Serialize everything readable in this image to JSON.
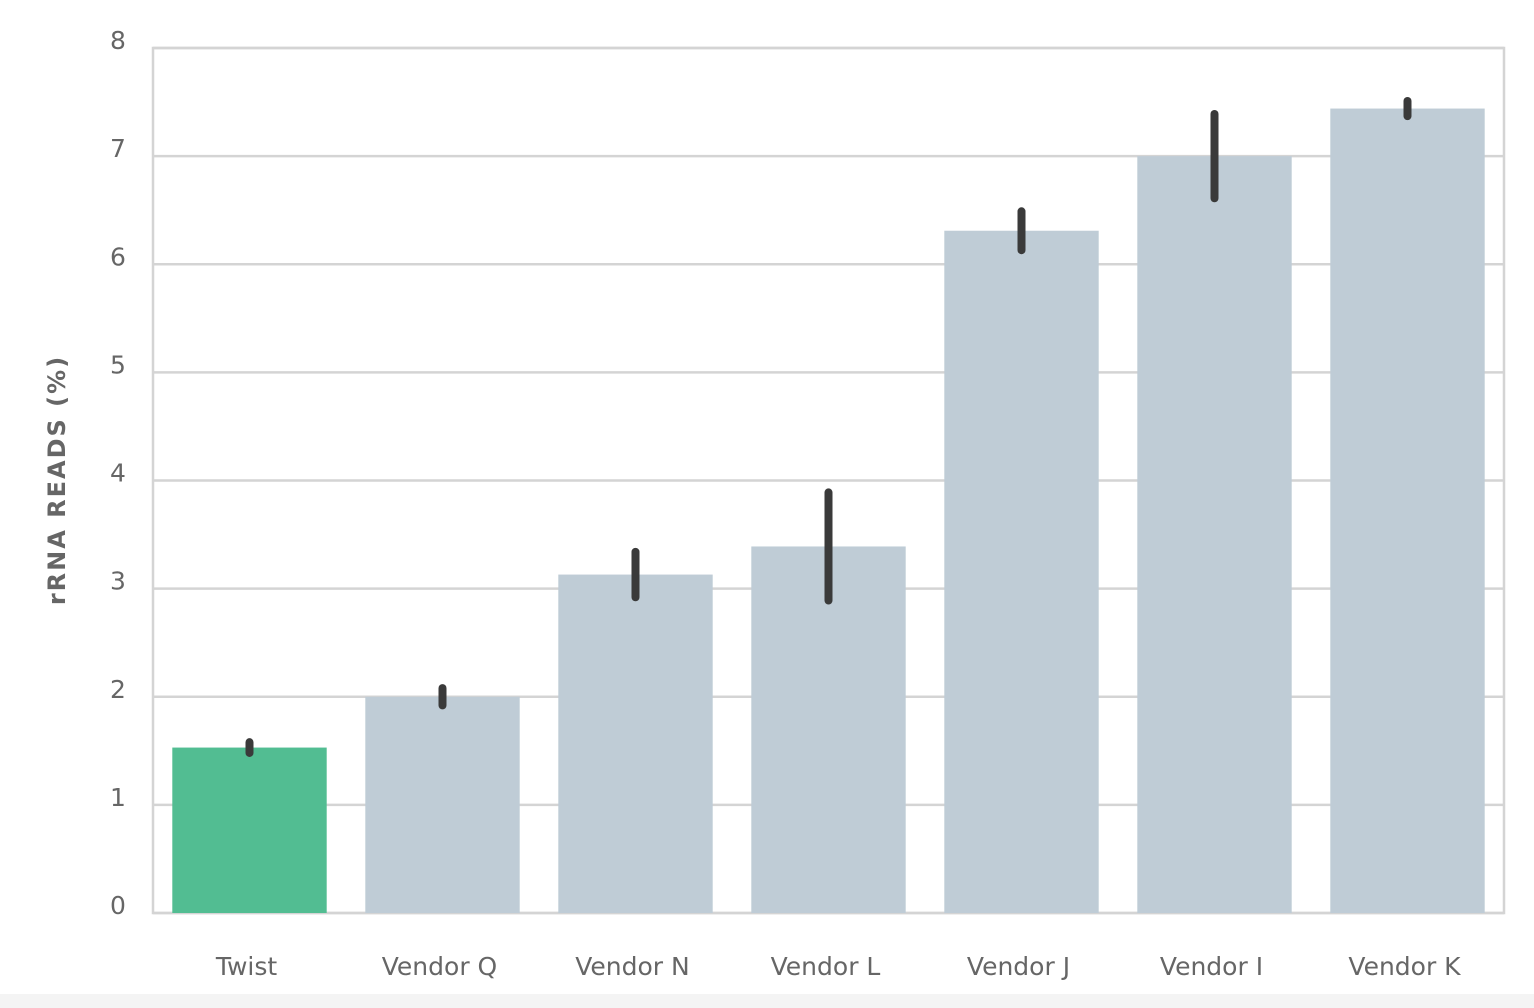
{
  "chart_data": {
    "type": "bar",
    "y_label": "rRNA READS (%)",
    "categories": [
      "Twist",
      "Vendor Q",
      "Vendor N",
      "Vendor L",
      "Vendor J",
      "Vendor I",
      "Vendor K"
    ],
    "values": [
      1.53,
      2.0,
      3.13,
      3.39,
      6.31,
      7.0,
      7.44
    ],
    "errors": [
      0.05,
      0.08,
      0.21,
      0.5,
      0.18,
      0.39,
      0.07
    ],
    "colors": [
      "#52bd92",
      "#bfccd6",
      "#bfccd6",
      "#bfccd6",
      "#bfccd6",
      "#bfccd6",
      "#bfccd6"
    ],
    "error_color": "#3a3a3a",
    "ylim": [
      0,
      8
    ],
    "yticks": [
      0,
      1,
      2,
      3,
      4,
      5,
      6,
      7,
      8
    ],
    "grid": true
  }
}
